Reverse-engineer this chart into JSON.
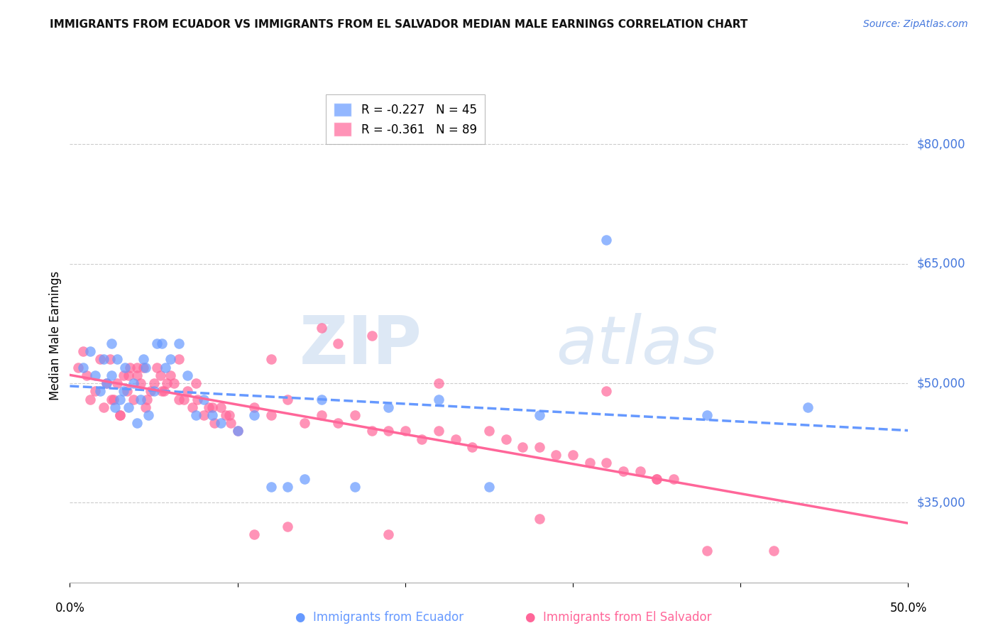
{
  "title": "IMMIGRANTS FROM ECUADOR VS IMMIGRANTS FROM EL SALVADOR MEDIAN MALE EARNINGS CORRELATION CHART",
  "source": "Source: ZipAtlas.com",
  "ylabel": "Median Male Earnings",
  "y_ticks": [
    35000,
    50000,
    65000,
    80000
  ],
  "y_tick_labels": [
    "$35,000",
    "$50,000",
    "$65,000",
    "$80,000"
  ],
  "xlim": [
    0.0,
    0.5
  ],
  "ylim": [
    25000,
    87000
  ],
  "ecuador_color": "#6699ff",
  "el_salvador_color": "#ff6699",
  "legend_label_ecuador": "R = -0.227   N = 45",
  "legend_label_el_salvador": "R = -0.361   N = 89",
  "ecuador_x": [
    0.008,
    0.012,
    0.015,
    0.018,
    0.02,
    0.022,
    0.025,
    0.025,
    0.027,
    0.028,
    0.03,
    0.032,
    0.033,
    0.035,
    0.038,
    0.04,
    0.042,
    0.044,
    0.045,
    0.047,
    0.05,
    0.052,
    0.055,
    0.057,
    0.06,
    0.065,
    0.07,
    0.075,
    0.08,
    0.085,
    0.09,
    0.1,
    0.11,
    0.12,
    0.13,
    0.14,
    0.15,
    0.17,
    0.19,
    0.22,
    0.25,
    0.28,
    0.32,
    0.38,
    0.44
  ],
  "ecuador_y": [
    52000,
    54000,
    51000,
    49000,
    53000,
    50000,
    55000,
    51000,
    47000,
    53000,
    48000,
    49000,
    52000,
    47000,
    50000,
    45000,
    48000,
    53000,
    52000,
    46000,
    49000,
    55000,
    55000,
    52000,
    53000,
    55000,
    51000,
    46000,
    48000,
    46000,
    45000,
    44000,
    46000,
    37000,
    37000,
    38000,
    48000,
    37000,
    47000,
    48000,
    37000,
    46000,
    68000,
    46000,
    47000
  ],
  "el_salvador_x": [
    0.005,
    0.008,
    0.01,
    0.012,
    0.015,
    0.018,
    0.02,
    0.022,
    0.024,
    0.026,
    0.028,
    0.03,
    0.032,
    0.034,
    0.036,
    0.038,
    0.04,
    0.042,
    0.044,
    0.046,
    0.048,
    0.05,
    0.052,
    0.054,
    0.056,
    0.058,
    0.06,
    0.062,
    0.065,
    0.068,
    0.07,
    0.073,
    0.076,
    0.08,
    0.083,
    0.086,
    0.09,
    0.093,
    0.096,
    0.1,
    0.11,
    0.12,
    0.13,
    0.14,
    0.15,
    0.16,
    0.17,
    0.18,
    0.19,
    0.2,
    0.21,
    0.22,
    0.23,
    0.24,
    0.25,
    0.26,
    0.27,
    0.28,
    0.29,
    0.3,
    0.31,
    0.32,
    0.33,
    0.34,
    0.35,
    0.36,
    0.12,
    0.15,
    0.18,
    0.22,
    0.025,
    0.03,
    0.035,
    0.04,
    0.045,
    0.055,
    0.065,
    0.075,
    0.085,
    0.095,
    0.11,
    0.13,
    0.16,
    0.19,
    0.28,
    0.35,
    0.38,
    0.42,
    0.32
  ],
  "el_salvador_y": [
    52000,
    54000,
    51000,
    48000,
    49000,
    53000,
    47000,
    50000,
    53000,
    48000,
    50000,
    46000,
    51000,
    49000,
    52000,
    48000,
    51000,
    50000,
    52000,
    48000,
    49000,
    50000,
    52000,
    51000,
    49000,
    50000,
    51000,
    50000,
    53000,
    48000,
    49000,
    47000,
    48000,
    46000,
    47000,
    45000,
    47000,
    46000,
    45000,
    44000,
    47000,
    46000,
    48000,
    45000,
    46000,
    45000,
    46000,
    44000,
    44000,
    44000,
    43000,
    44000,
    43000,
    42000,
    44000,
    43000,
    42000,
    42000,
    41000,
    41000,
    40000,
    40000,
    39000,
    39000,
    38000,
    38000,
    53000,
    57000,
    56000,
    50000,
    48000,
    46000,
    51000,
    52000,
    47000,
    49000,
    48000,
    50000,
    47000,
    46000,
    31000,
    32000,
    55000,
    31000,
    33000,
    38000,
    29000,
    29000,
    49000
  ]
}
